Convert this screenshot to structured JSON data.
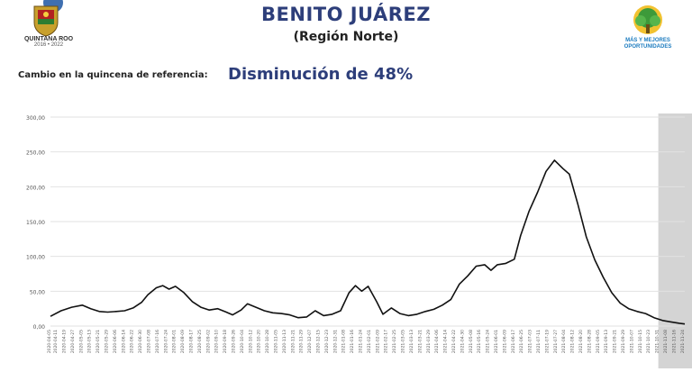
{
  "header": {
    "title": "BENITO JUÁREZ",
    "subtitle": "(Región Norte)",
    "left_logo": {
      "icon": "quintana-roo-seal-icon",
      "text_line1": "QUINTANA ROO",
      "text_line2": "2016 • 2022"
    },
    "right_logo": {
      "icon": "mas-y-mejores-oportunidades-tree-icon",
      "text_line1": "MÁS Y MEJORES",
      "text_line2": "OPORTUNIDADES"
    }
  },
  "summary": {
    "label": "Cambio en la quincena de referencia:",
    "value": "Disminución de 48%"
  },
  "colors": {
    "title": "#2d3e7a",
    "line": "#111111",
    "shaded_band": "#d4d4d4",
    "grid": "#e2e2e2"
  },
  "chart_data": {
    "type": "line",
    "title": "",
    "xlabel": "",
    "ylabel": "",
    "ylim": [
      0,
      300
    ],
    "y_ticks": [
      "0,00",
      "50,00",
      "100,00",
      "150,00",
      "200,00",
      "250,00",
      "300,00"
    ],
    "grid": true,
    "x_range": [
      "2020-04-05",
      "2021-11-25"
    ],
    "x_tick_labels": [
      "2020-04-05",
      "2020-04-11",
      "2020-04-19",
      "2020-04-27",
      "2020-05-05",
      "2020-05-13",
      "2020-05-21",
      "2020-05-29",
      "2020-06-06",
      "2020-06-14",
      "2020-06-22",
      "2020-06-30",
      "2020-07-08",
      "2020-07-16",
      "2020-07-24",
      "2020-08-01",
      "2020-08-09",
      "2020-08-17",
      "2020-08-25",
      "2020-09-02",
      "2020-09-10",
      "2020-09-18",
      "2020-09-26",
      "2020-10-04",
      "2020-10-12",
      "2020-10-20",
      "2020-10-28",
      "2020-11-05",
      "2020-11-13",
      "2020-11-21",
      "2020-11-29",
      "2020-12-07",
      "2020-12-15",
      "2020-12-23",
      "2020-12-31",
      "2021-01-08",
      "2021-01-16",
      "2021-01-24",
      "2021-02-01",
      "2021-02-09",
      "2021-02-17",
      "2021-02-25",
      "2021-03-05",
      "2021-03-13",
      "2021-03-21",
      "2021-03-29",
      "2021-04-06",
      "2021-04-14",
      "2021-04-22",
      "2021-04-30",
      "2021-05-08",
      "2021-05-16",
      "2021-05-24",
      "2021-06-01",
      "2021-06-09",
      "2021-06-17",
      "2021-06-25",
      "2021-07-03",
      "2021-07-11",
      "2021-07-19",
      "2021-07-27",
      "2021-08-04",
      "2021-08-12",
      "2021-08-20",
      "2021-08-28",
      "2021-09-05",
      "2021-09-13",
      "2021-09-21",
      "2021-09-29",
      "2021-10-07",
      "2021-10-15",
      "2021-10-23",
      "2021-10-31",
      "2021-11-08",
      "2021-11-16",
      "2021-11-24"
    ],
    "shaded_region": [
      "2021-10-31",
      "2021-11-25"
    ],
    "series": [
      {
        "values": [
          [
            "2020-04-05",
            14
          ],
          [
            "2020-04-15",
            22
          ],
          [
            "2020-04-25",
            27
          ],
          [
            "2020-05-05",
            30
          ],
          [
            "2020-05-13",
            25
          ],
          [
            "2020-05-21",
            21
          ],
          [
            "2020-05-29",
            20
          ],
          [
            "2020-06-06",
            21
          ],
          [
            "2020-06-14",
            22
          ],
          [
            "2020-06-22",
            26
          ],
          [
            "2020-06-30",
            34
          ],
          [
            "2020-07-06",
            45
          ],
          [
            "2020-07-14",
            55
          ],
          [
            "2020-07-20",
            58
          ],
          [
            "2020-07-26",
            53
          ],
          [
            "2020-08-01",
            57
          ],
          [
            "2020-08-09",
            48
          ],
          [
            "2020-08-17",
            35
          ],
          [
            "2020-08-25",
            27
          ],
          [
            "2020-09-02",
            23
          ],
          [
            "2020-09-10",
            25
          ],
          [
            "2020-09-18",
            20
          ],
          [
            "2020-09-24",
            16
          ],
          [
            "2020-10-02",
            23
          ],
          [
            "2020-10-08",
            32
          ],
          [
            "2020-10-16",
            27
          ],
          [
            "2020-10-24",
            22
          ],
          [
            "2020-11-01",
            19
          ],
          [
            "2020-11-09",
            18
          ],
          [
            "2020-11-17",
            16
          ],
          [
            "2020-11-25",
            12
          ],
          [
            "2020-12-03",
            13
          ],
          [
            "2020-12-11",
            22
          ],
          [
            "2020-12-19",
            15
          ],
          [
            "2020-12-27",
            17
          ],
          [
            "2021-01-04",
            22
          ],
          [
            "2021-01-12",
            48
          ],
          [
            "2021-01-18",
            58
          ],
          [
            "2021-01-24",
            50
          ],
          [
            "2021-01-30",
            57
          ],
          [
            "2021-02-07",
            35
          ],
          [
            "2021-02-13",
            17
          ],
          [
            "2021-02-21",
            26
          ],
          [
            "2021-03-01",
            18
          ],
          [
            "2021-03-09",
            15
          ],
          [
            "2021-03-17",
            17
          ],
          [
            "2021-03-25",
            21
          ],
          [
            "2021-04-02",
            24
          ],
          [
            "2021-04-10",
            30
          ],
          [
            "2021-04-18",
            38
          ],
          [
            "2021-04-26",
            60
          ],
          [
            "2021-05-04",
            72
          ],
          [
            "2021-05-12",
            86
          ],
          [
            "2021-05-20",
            88
          ],
          [
            "2021-05-26",
            80
          ],
          [
            "2021-06-01",
            88
          ],
          [
            "2021-06-09",
            90
          ],
          [
            "2021-06-17",
            96
          ],
          [
            "2021-06-23",
            130
          ],
          [
            "2021-07-01",
            165
          ],
          [
            "2021-07-09",
            192
          ],
          [
            "2021-07-17",
            222
          ],
          [
            "2021-07-25",
            238
          ],
          [
            "2021-08-02",
            226
          ],
          [
            "2021-08-08",
            218
          ],
          [
            "2021-08-16",
            175
          ],
          [
            "2021-08-24",
            128
          ],
          [
            "2021-09-01",
            95
          ],
          [
            "2021-09-09",
            70
          ],
          [
            "2021-09-17",
            48
          ],
          [
            "2021-09-25",
            33
          ],
          [
            "2021-10-03",
            25
          ],
          [
            "2021-10-11",
            21
          ],
          [
            "2021-10-19",
            18
          ],
          [
            "2021-10-27",
            12
          ],
          [
            "2021-11-04",
            8
          ],
          [
            "2021-11-12",
            6
          ],
          [
            "2021-11-20",
            4
          ],
          [
            "2021-11-25",
            3
          ]
        ]
      }
    ]
  }
}
